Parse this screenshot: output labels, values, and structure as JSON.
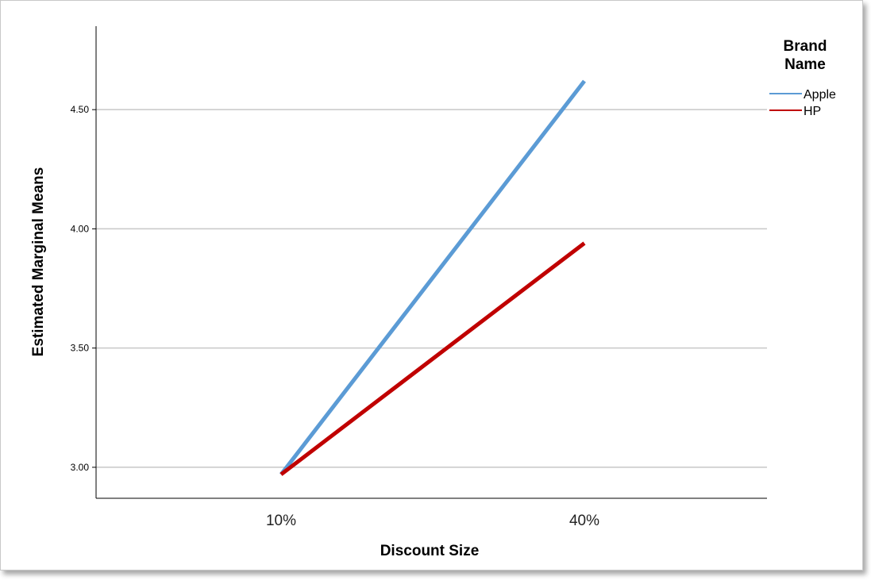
{
  "chart_data": {
    "type": "line",
    "x": [
      "10%",
      "40%"
    ],
    "xlabel": "Discount Size",
    "ylabel": "Estimated Marginal Means",
    "ylim": [
      2.87,
      4.85
    ],
    "yticks": [
      3.0,
      3.5,
      4.0,
      4.5
    ],
    "ytick_labels": [
      "3.00",
      "3.50",
      "4.00",
      "4.50"
    ],
    "grid": "horizontal",
    "legend": {
      "title": [
        "Brand",
        "Name"
      ],
      "placement": "top-right"
    },
    "series": [
      {
        "name": "Apple",
        "values": [
          2.97,
          4.62
        ],
        "color": "#5b9bd5"
      },
      {
        "name": "HP",
        "values": [
          2.97,
          3.94
        ],
        "color": "#c00000"
      }
    ]
  }
}
